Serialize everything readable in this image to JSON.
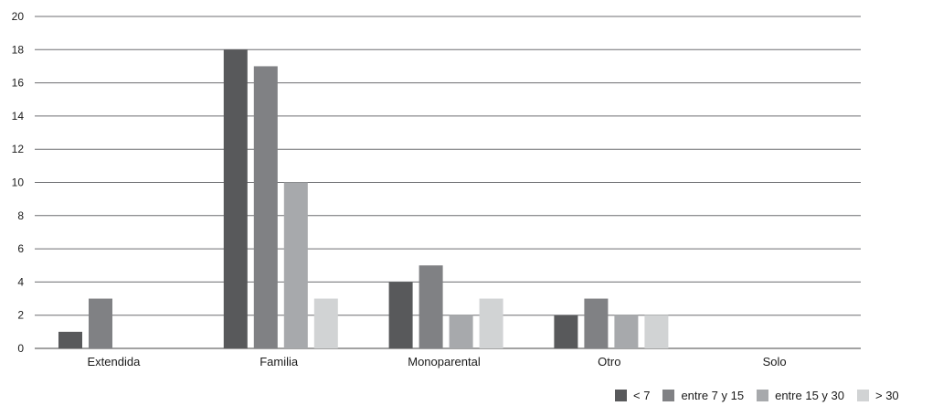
{
  "chart_data": {
    "type": "bar",
    "categories": [
      "Extendida",
      "Familia",
      "Monoparental",
      "Otro",
      "Solo"
    ],
    "series": [
      {
        "name": "< 7",
        "color": "#58595b",
        "values": [
          1,
          18,
          4,
          2,
          0
        ]
      },
      {
        "name": "entre 7 y 15",
        "color": "#808184",
        "values": [
          3,
          17,
          5,
          3,
          0
        ]
      },
      {
        "name": "entre 15 y 30",
        "color": "#a7a9ac",
        "values": [
          0,
          10,
          2,
          2,
          0
        ]
      },
      {
        "name": "> 30",
        "color": "#d1d3d4",
        "values": [
          0,
          3,
          3,
          2,
          0
        ]
      }
    ],
    "yticks": [
      0,
      2,
      4,
      6,
      8,
      10,
      12,
      14,
      16,
      18,
      20
    ],
    "ylim": [
      0,
      20
    ],
    "grid": true,
    "legend_position": "bottom-right",
    "title": "",
    "xlabel": "",
    "ylabel": ""
  }
}
